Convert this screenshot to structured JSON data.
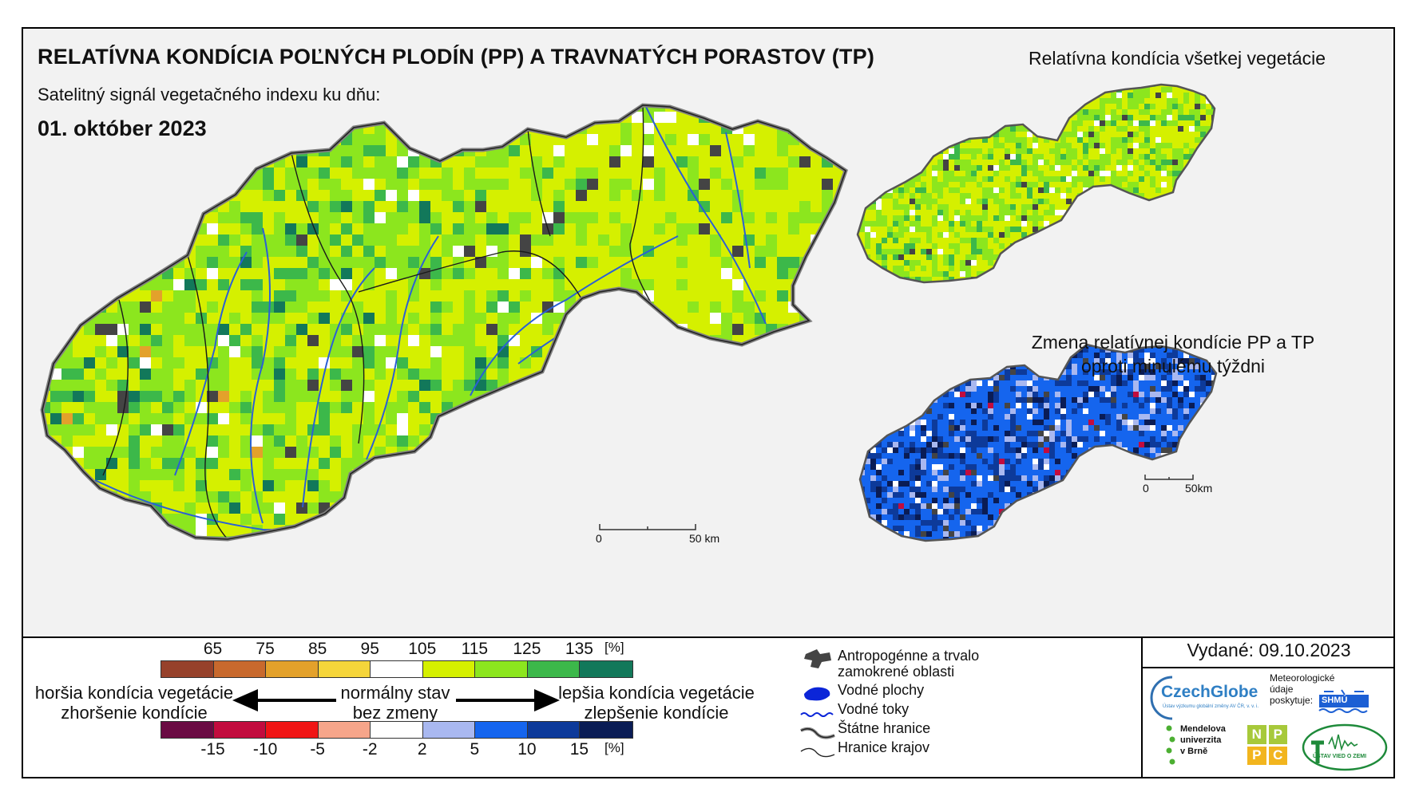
{
  "header": {
    "title": "RELATÍVNA KONDÍCIA POĽNÝCH PLODÍN (PP) A TRAVNATÝCH PORASTOV (TP)",
    "subtitle": "Satelitný signál vegetačného indexu ku dňu:",
    "date": "01. október 2023"
  },
  "insets": {
    "all_vegetation_title": "Relatívna kondícia všetkej vegetácie",
    "weekly_change_title_line1": "Zmena relatívnej kondície PP a TP",
    "weekly_change_title_line2": "oproti minulému týždni"
  },
  "scalebars": {
    "main": {
      "zero": "0",
      "end": "50 km"
    },
    "inset": {
      "zero": "0",
      "end": "50km"
    }
  },
  "legend_condition": {
    "ticks": [
      "65",
      "75",
      "85",
      "95",
      "105",
      "115",
      "125",
      "135"
    ],
    "unit": "[%]",
    "colors": [
      "#96412b",
      "#c8692d",
      "#e3a12b",
      "#f5d53a",
      "#ffffff",
      "#d5f000",
      "#8ce61e",
      "#3cb84a",
      "#12785a"
    ]
  },
  "legend_change": {
    "ticks": [
      "-15",
      "-10",
      "-5",
      "-2",
      "2",
      "5",
      "10",
      "15"
    ],
    "unit": "[%]",
    "colors": [
      "#6a0b43",
      "#c20c3e",
      "#f01515",
      "#f6a58a",
      "#ffffff",
      "#a9b8f0",
      "#1565ee",
      "#0d3a9a",
      "#0a1c55"
    ]
  },
  "arrows": {
    "left_line1": "horšia kondícia vegetácie",
    "left_line2": "zhoršenie kondície",
    "center_line1": "normálny stav",
    "center_line2": "bez zmeny",
    "right_line1": "lepšia kondícia vegetácie",
    "right_line2": "zlepšenie kondície"
  },
  "map_legend": {
    "anthropogenic_line1": "Antropogénne a trvalo",
    "anthropogenic_line2": "zamokrené oblasti",
    "water_bodies": "Vodné plochy",
    "water_streams": "Vodné toky",
    "state_borders": "Štátne hranice",
    "region_borders": "Hranice krajov"
  },
  "issued": "Vydané: 09.10.2023",
  "logos": {
    "czechglobe": "CzechGlobe",
    "czechglobe_sub": "Ústav výzkumu globální změny AV ČR, v. v. i.",
    "met_line1": "Meteorologické",
    "met_line2": "údaje",
    "met_line3": "poskytuje:",
    "shmu": "SHMÚ",
    "mendel_line1": "Mendelova",
    "mendel_line2": "univerzita",
    "mendel_line3": "v Brně",
    "nppc": [
      "N",
      "P",
      "P",
      "C"
    ],
    "uvz": "ÚSTAV VIED O ZEMI"
  }
}
